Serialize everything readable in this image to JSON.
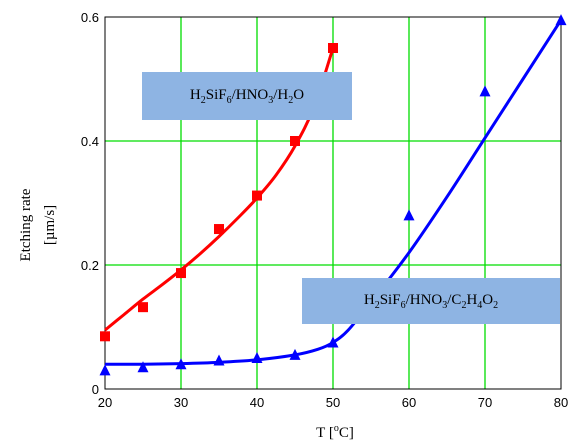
{
  "chart_data": {
    "type": "scatter",
    "title": "",
    "xlabel": "T [°C]",
    "ylabel": "Etching rate [µm/s]",
    "xlim": [
      20,
      80
    ],
    "ylim": [
      0,
      0.6
    ],
    "xticks": [
      20,
      30,
      40,
      50,
      60,
      70,
      80
    ],
    "yticks": [
      0,
      0.2,
      0.4,
      0.6
    ],
    "grid": true,
    "series": [
      {
        "name": "H2SiF6/HNO3/H2O",
        "color": "#ff0000",
        "marker": "square",
        "x": [
          20,
          25,
          30,
          35,
          40,
          45,
          50
        ],
        "y": [
          0.085,
          0.132,
          0.187,
          0.258,
          0.312,
          0.4,
          0.55
        ],
        "fit": {
          "x": [
            20,
            22.5,
            25,
            27.5,
            30,
            32.5,
            35,
            37.5,
            40,
            42.5,
            45,
            47.5,
            50
          ],
          "y": [
            0.095,
            0.12,
            0.145,
            0.168,
            0.192,
            0.218,
            0.246,
            0.276,
            0.308,
            0.345,
            0.392,
            0.455,
            0.55
          ]
        }
      },
      {
        "name": "H2SiF6/HNO3/C2H4O2",
        "color": "#0000ff",
        "marker": "triangle",
        "x": [
          20,
          25,
          30,
          35,
          40,
          45,
          50,
          60,
          70,
          80
        ],
        "y": [
          0.03,
          0.035,
          0.04,
          0.046,
          0.05,
          0.055,
          0.075,
          0.28,
          0.48,
          0.595
        ],
        "fit": {
          "x": [
            20,
            25,
            30,
            35,
            40,
            45,
            48,
            50,
            52,
            55,
            60,
            65,
            70,
            75,
            80
          ],
          "y": [
            0.04,
            0.04,
            0.041,
            0.043,
            0.047,
            0.055,
            0.064,
            0.075,
            0.095,
            0.14,
            0.22,
            0.31,
            0.405,
            0.5,
            0.595
          ]
        }
      }
    ]
  },
  "legend": {
    "red": {
      "base1": "H",
      "sub1": "2",
      "base2": "SiF",
      "sub2": "6",
      "base3": "/HNO",
      "sub3": "3",
      "base4": "/H",
      "sub4": "2",
      "base5": "O"
    },
    "blue": {
      "base1": "H",
      "sub1": "2",
      "base2": "SiF",
      "sub2": "6",
      "base3": "/HNO",
      "sub3": "3",
      "base4": "/C",
      "sub4": "2",
      "base5": "H",
      "sub5": "4",
      "base6": "O",
      "sub6": "2"
    }
  },
  "axes": {
    "x_title_main": "T [",
    "x_title_sup": "o",
    "x_title_end": "C]",
    "y_title_line1": "Etching rate",
    "y_title_line2": "[µm/s]"
  }
}
